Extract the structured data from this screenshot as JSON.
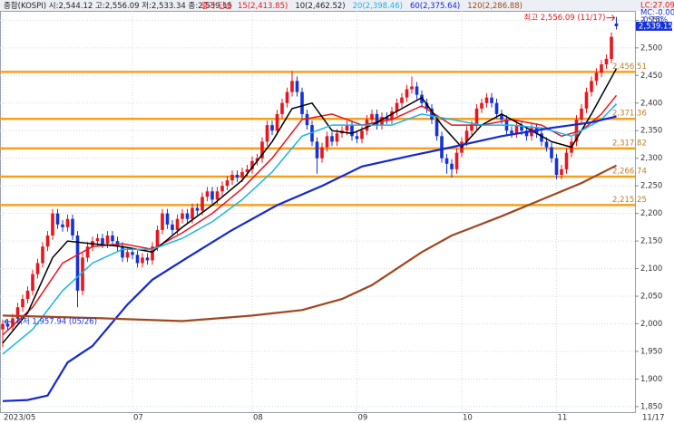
{
  "chart_data": {
    "type": "candlestick",
    "header": {
      "title": "종합(KOSPI) 시:2,544.12 고:2,556.09 저:2,533.34 종:2,539.15",
      "ma_prefix": "종가 단순"
    },
    "corner_labels": [
      "LC:27.09",
      "MC:-0.00",
      "-0.15%"
    ],
    "up_color": "#e8161c",
    "down_color": "#1432d8",
    "categories": [
      "2023/05",
      null,
      null,
      null,
      null,
      null,
      null,
      null,
      null,
      null,
      null,
      null,
      null,
      null,
      null,
      null,
      null,
      null,
      null,
      null,
      null,
      null,
      null,
      null,
      null,
      null,
      "07",
      null,
      null,
      null,
      null,
      null,
      null,
      null,
      null,
      null,
      null,
      null,
      null,
      null,
      null,
      null,
      null,
      null,
      null,
      null,
      null,
      null,
      null,
      null,
      "08",
      null,
      null,
      null,
      null,
      null,
      null,
      null,
      null,
      null,
      null,
      null,
      null,
      null,
      null,
      null,
      null,
      null,
      null,
      null,
      null,
      "09",
      null,
      null,
      null,
      null,
      null,
      null,
      null,
      null,
      null,
      null,
      null,
      null,
      null,
      null,
      null,
      null,
      null,
      null,
      null,
      null,
      "10",
      null,
      null,
      null,
      null,
      null,
      null,
      null,
      null,
      null,
      null,
      null,
      null,
      null,
      null,
      null,
      null,
      null,
      null,
      "11",
      null,
      null,
      null,
      null,
      null,
      null,
      null,
      null,
      null,
      null,
      null,
      null
    ],
    "last_date": "11/17",
    "open": [
      1990,
      2000,
      1995,
      2010,
      2030,
      2045,
      2060,
      2090,
      2110,
      2140,
      2160,
      2200,
      2180,
      2175,
      2190,
      2160,
      2060,
      2120,
      2140,
      2150,
      2155,
      2145,
      2160,
      2150,
      2140,
      2120,
      2130,
      2125,
      2110,
      2120,
      2115,
      2140,
      2170,
      2200,
      2180,
      2170,
      2190,
      2200,
      2190,
      2210,
      2205,
      2230,
      2240,
      2225,
      2240,
      2250,
      2260,
      2270,
      2265,
      2275,
      2280,
      2295,
      2300,
      2330,
      2360,
      2350,
      2380,
      2400,
      2420,
      2440,
      2420,
      2380,
      2360,
      2330,
      2300,
      2320,
      2340,
      2330,
      2345,
      2350,
      2360,
      2340,
      2335,
      2350,
      2370,
      2380,
      2360,
      2375,
      2370,
      2385,
      2400,
      2410,
      2425,
      2430,
      2415,
      2400,
      2390,
      2370,
      2340,
      2300,
      2290,
      2280,
      2310,
      2330,
      2350,
      2360,
      2390,
      2400,
      2410,
      2400,
      2380,
      2370,
      2350,
      2345,
      2360,
      2350,
      2340,
      2355,
      2345,
      2330,
      2320,
      2300,
      2270,
      2280,
      2310,
      2330,
      2370,
      2390,
      2420,
      2440,
      2455,
      2470,
      2480,
      2544.12
    ],
    "high": [
      2008,
      2008,
      2018,
      2038,
      2053,
      2068,
      2098,
      2118,
      2148,
      2168,
      2208,
      2208,
      2188,
      2198,
      2198,
      2168,
      2128,
      2148,
      2158,
      2163,
      2163,
      2168,
      2168,
      2158,
      2148,
      2138,
      2138,
      2133,
      2128,
      2128,
      2148,
      2178,
      2208,
      2208,
      2188,
      2198,
      2208,
      2208,
      2218,
      2218,
      2238,
      2248,
      2248,
      2248,
      2258,
      2268,
      2278,
      2278,
      2283,
      2288,
      2303,
      2308,
      2338,
      2368,
      2368,
      2388,
      2408,
      2428,
      2458,
      2448,
      2428,
      2388,
      2368,
      2338,
      2328,
      2348,
      2348,
      2353,
      2358,
      2368,
      2368,
      2348,
      2358,
      2378,
      2388,
      2388,
      2383,
      2383,
      2393,
      2408,
      2418,
      2433,
      2448,
      2438,
      2423,
      2408,
      2398,
      2378,
      2348,
      2308,
      2298,
      2318,
      2338,
      2358,
      2368,
      2398,
      2408,
      2418,
      2418,
      2408,
      2388,
      2378,
      2358,
      2368,
      2368,
      2358,
      2363,
      2363,
      2353,
      2338,
      2328,
      2308,
      2288,
      2318,
      2338,
      2378,
      2398,
      2428,
      2448,
      2463,
      2478,
      2488,
      2528,
      2556.09
    ],
    "low": [
      1957.94,
      1987,
      1987,
      2002,
      2022,
      2037,
      2052,
      2082,
      2102,
      2132,
      2152,
      2172,
      2167,
      2167,
      2152,
      2030,
      2052,
      2112,
      2132,
      2142,
      2137,
      2137,
      2142,
      2132,
      2112,
      2112,
      2117,
      2102,
      2102,
      2107,
      2107,
      2132,
      2162,
      2172,
      2162,
      2162,
      2182,
      2182,
      2182,
      2197,
      2197,
      2222,
      2217,
      2217,
      2232,
      2242,
      2252,
      2257,
      2257,
      2267,
      2272,
      2287,
      2292,
      2322,
      2342,
      2342,
      2372,
      2392,
      2412,
      2412,
      2372,
      2352,
      2322,
      2272,
      2292,
      2312,
      2322,
      2322,
      2337,
      2342,
      2332,
      2327,
      2327,
      2342,
      2362,
      2352,
      2352,
      2362,
      2362,
      2377,
      2392,
      2402,
      2417,
      2407,
      2392,
      2382,
      2362,
      2332,
      2292,
      2272,
      2265,
      2272,
      2302,
      2322,
      2342,
      2352,
      2382,
      2392,
      2392,
      2372,
      2362,
      2342,
      2337,
      2337,
      2342,
      2332,
      2332,
      2337,
      2322,
      2312,
      2292,
      2262,
      2262,
      2272,
      2302,
      2322,
      2362,
      2382,
      2412,
      2432,
      2447,
      2462,
      2472,
      2533.34
    ],
    "close": [
      2000,
      1995,
      2010,
      2030,
      2045,
      2060,
      2090,
      2110,
      2140,
      2160,
      2200,
      2180,
      2175,
      2190,
      2160,
      2060,
      2120,
      2140,
      2150,
      2155,
      2145,
      2160,
      2150,
      2140,
      2120,
      2130,
      2125,
      2110,
      2120,
      2115,
      2140,
      2170,
      2200,
      2180,
      2170,
      2190,
      2200,
      2190,
      2210,
      2205,
      2230,
      2240,
      2225,
      2240,
      2250,
      2260,
      2270,
      2265,
      2275,
      2280,
      2295,
      2300,
      2330,
      2360,
      2350,
      2380,
      2400,
      2420,
      2440,
      2420,
      2380,
      2360,
      2330,
      2300,
      2320,
      2340,
      2330,
      2345,
      2350,
      2360,
      2340,
      2335,
      2350,
      2370,
      2380,
      2360,
      2375,
      2370,
      2385,
      2400,
      2410,
      2425,
      2430,
      2415,
      2400,
      2390,
      2370,
      2340,
      2300,
      2290,
      2280,
      2310,
      2330,
      2350,
      2360,
      2390,
      2400,
      2410,
      2400,
      2380,
      2370,
      2350,
      2345,
      2360,
      2350,
      2340,
      2355,
      2345,
      2330,
      2320,
      2300,
      2270,
      2280,
      2310,
      2330,
      2370,
      2390,
      2420,
      2440,
      2455,
      2470,
      2480,
      2520,
      2539.15
    ],
    "series": [
      {
        "name": "15(2,413.85)",
        "color": "#e8161c",
        "width": 1.5,
        "x": [
          0,
          6,
          12,
          18,
          24,
          30,
          36,
          42,
          48,
          54,
          60,
          66,
          72,
          78,
          84,
          90,
          96,
          102,
          108,
          112,
          116,
          120,
          123
        ],
        "values": [
          1980,
          2030,
          2110,
          2140,
          2145,
          2135,
          2165,
          2200,
          2245,
          2300,
          2370,
          2380,
          2360,
          2370,
          2395,
          2360,
          2360,
          2370,
          2360,
          2340,
          2350,
          2380,
          2413.85
        ]
      },
      {
        "name": "10(2,462.52)",
        "color": "#000000",
        "width": 1.5,
        "x": [
          0,
          5,
          10,
          13,
          18,
          24,
          30,
          36,
          42,
          48,
          54,
          58,
          62,
          66,
          70,
          74,
          80,
          84,
          88,
          92,
          96,
          100,
          106,
          110,
          114,
          118,
          123
        ],
        "values": [
          1965,
          2020,
          2120,
          2150,
          2145,
          2140,
          2130,
          2175,
          2215,
          2260,
          2330,
          2390,
          2400,
          2350,
          2345,
          2360,
          2390,
          2410,
          2360,
          2320,
          2360,
          2380,
          2350,
          2330,
          2320,
          2380,
          2462.52
        ]
      },
      {
        "name": "20(2,398.46)",
        "color": "#19b4e6",
        "width": 1.5,
        "x": [
          0,
          6,
          12,
          18,
          24,
          30,
          36,
          42,
          48,
          54,
          60,
          66,
          72,
          78,
          84,
          90,
          96,
          102,
          108,
          114,
          120,
          123
        ],
        "values": [
          1945,
          1990,
          2060,
          2110,
          2135,
          2135,
          2155,
          2185,
          2225,
          2275,
          2340,
          2360,
          2360,
          2360,
          2380,
          2370,
          2360,
          2360,
          2355,
          2340,
          2370,
          2398.46
        ]
      },
      {
        "name": "60(2,375.64)",
        "color": "#1428d2",
        "width": 2.2,
        "x": [
          0,
          5,
          9,
          13,
          18,
          25,
          30,
          37,
          46,
          55,
          64,
          72,
          82,
          90,
          100,
          110,
          118,
          123
        ],
        "values": [
          1860,
          1862,
          1870,
          1930,
          1960,
          2035,
          2080,
          2120,
          2170,
          2215,
          2250,
          2285,
          2305,
          2320,
          2340,
          2355,
          2365,
          2375.64
        ]
      },
      {
        "name": "120(2,286.88)",
        "color": "#a0461e",
        "width": 2.2,
        "x": [
          0,
          20,
          36,
          50,
          60,
          68,
          74,
          78,
          84,
          90,
          100,
          108,
          116,
          123
        ],
        "values": [
          2015,
          2010,
          2005,
          2015,
          2025,
          2045,
          2070,
          2094,
          2130,
          2160,
          2195,
          2225,
          2255,
          2286.88
        ]
      }
    ],
    "hlines": [
      {
        "value": 2456.51,
        "label": "2,456.51"
      },
      {
        "value": 2371.36,
        "label": "2,371.36"
      },
      {
        "value": 2317.82,
        "label": "2,317.82"
      },
      {
        "value": 2266.74,
        "label": "2,266.74"
      },
      {
        "value": 2215.25,
        "label": "2,215.25"
      }
    ],
    "hline_color": "#f5a020",
    "high_note": "최고 2,556.09 (11/17)",
    "low_note": "최저 1,957.94 (05/26)",
    "last_price": {
      "value": 2539.15,
      "label": "2,539.15"
    },
    "ylim": [
      1840,
      2567
    ],
    "yticks": [
      {
        "value": 1850,
        "label": "1,850"
      },
      {
        "value": 1900,
        "label": "1,900"
      },
      {
        "value": 1950,
        "label": "1,950"
      },
      {
        "value": 2000,
        "label": "2,000"
      },
      {
        "value": 2050,
        "label": "2,050"
      },
      {
        "value": 2100,
        "label": "2,100"
      },
      {
        "value": 2150,
        "label": "2,150"
      },
      {
        "value": 2200,
        "label": "2,200"
      },
      {
        "value": 2250,
        "label": "2,250"
      },
      {
        "value": 2300,
        "label": "2,300"
      },
      {
        "value": 2350,
        "label": "2,350"
      },
      {
        "value": 2400,
        "label": "2,400"
      },
      {
        "value": 2450,
        "label": "2,450"
      },
      {
        "value": 2500,
        "label": "2,500"
      },
      {
        "value": 2550,
        "label": "2,550"
      }
    ],
    "grid": true
  }
}
